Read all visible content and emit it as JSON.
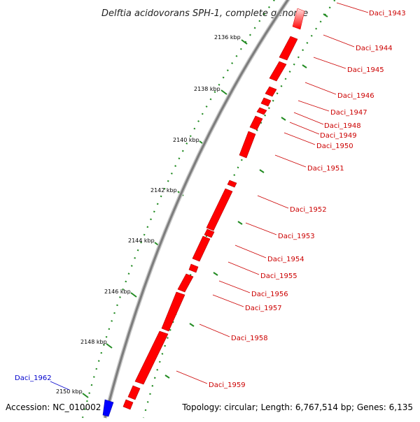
{
  "title": "Delftia acidovorans SPH-1, complete genome",
  "footer": {
    "accession": "Accession: NC_010002",
    "topology": "Topology: circular; Length: 6,767,514 bp; Genes: 6,135"
  },
  "colors": {
    "forward_gene": "#ff0000",
    "reverse_gene": "#0000ff",
    "backbone": "#808080",
    "tick": "#228b22",
    "forward_label": "#cc0000",
    "reverse_label": "#0000cc"
  },
  "scale_labels": [
    "2136 kbp",
    "2138 kbp",
    "2140 kbp",
    "2142 kbp",
    "2144 kbp",
    "2146 kbp",
    "2148 kbp",
    "2150 kbp"
  ],
  "gene_labels": [
    {
      "label": "Daci_1943",
      "strand": "forward"
    },
    {
      "label": "Daci_1944",
      "strand": "forward"
    },
    {
      "label": "Daci_1945",
      "strand": "forward"
    },
    {
      "label": "Daci_1946",
      "strand": "forward"
    },
    {
      "label": "Daci_1947",
      "strand": "forward"
    },
    {
      "label": "Daci_1948",
      "strand": "forward"
    },
    {
      "label": "Daci_1949",
      "strand": "forward"
    },
    {
      "label": "Daci_1950",
      "strand": "forward"
    },
    {
      "label": "Daci_1951",
      "strand": "forward"
    },
    {
      "label": "Daci_1952",
      "strand": "forward"
    },
    {
      "label": "Daci_1953",
      "strand": "forward"
    },
    {
      "label": "Daci_1954",
      "strand": "forward"
    },
    {
      "label": "Daci_1955",
      "strand": "forward"
    },
    {
      "label": "Daci_1956",
      "strand": "forward"
    },
    {
      "label": "Daci_1957",
      "strand": "forward"
    },
    {
      "label": "Daci_1958",
      "strand": "forward"
    },
    {
      "label": "Daci_1959",
      "strand": "forward"
    },
    {
      "label": "Daci_1962",
      "strand": "reverse"
    }
  ]
}
